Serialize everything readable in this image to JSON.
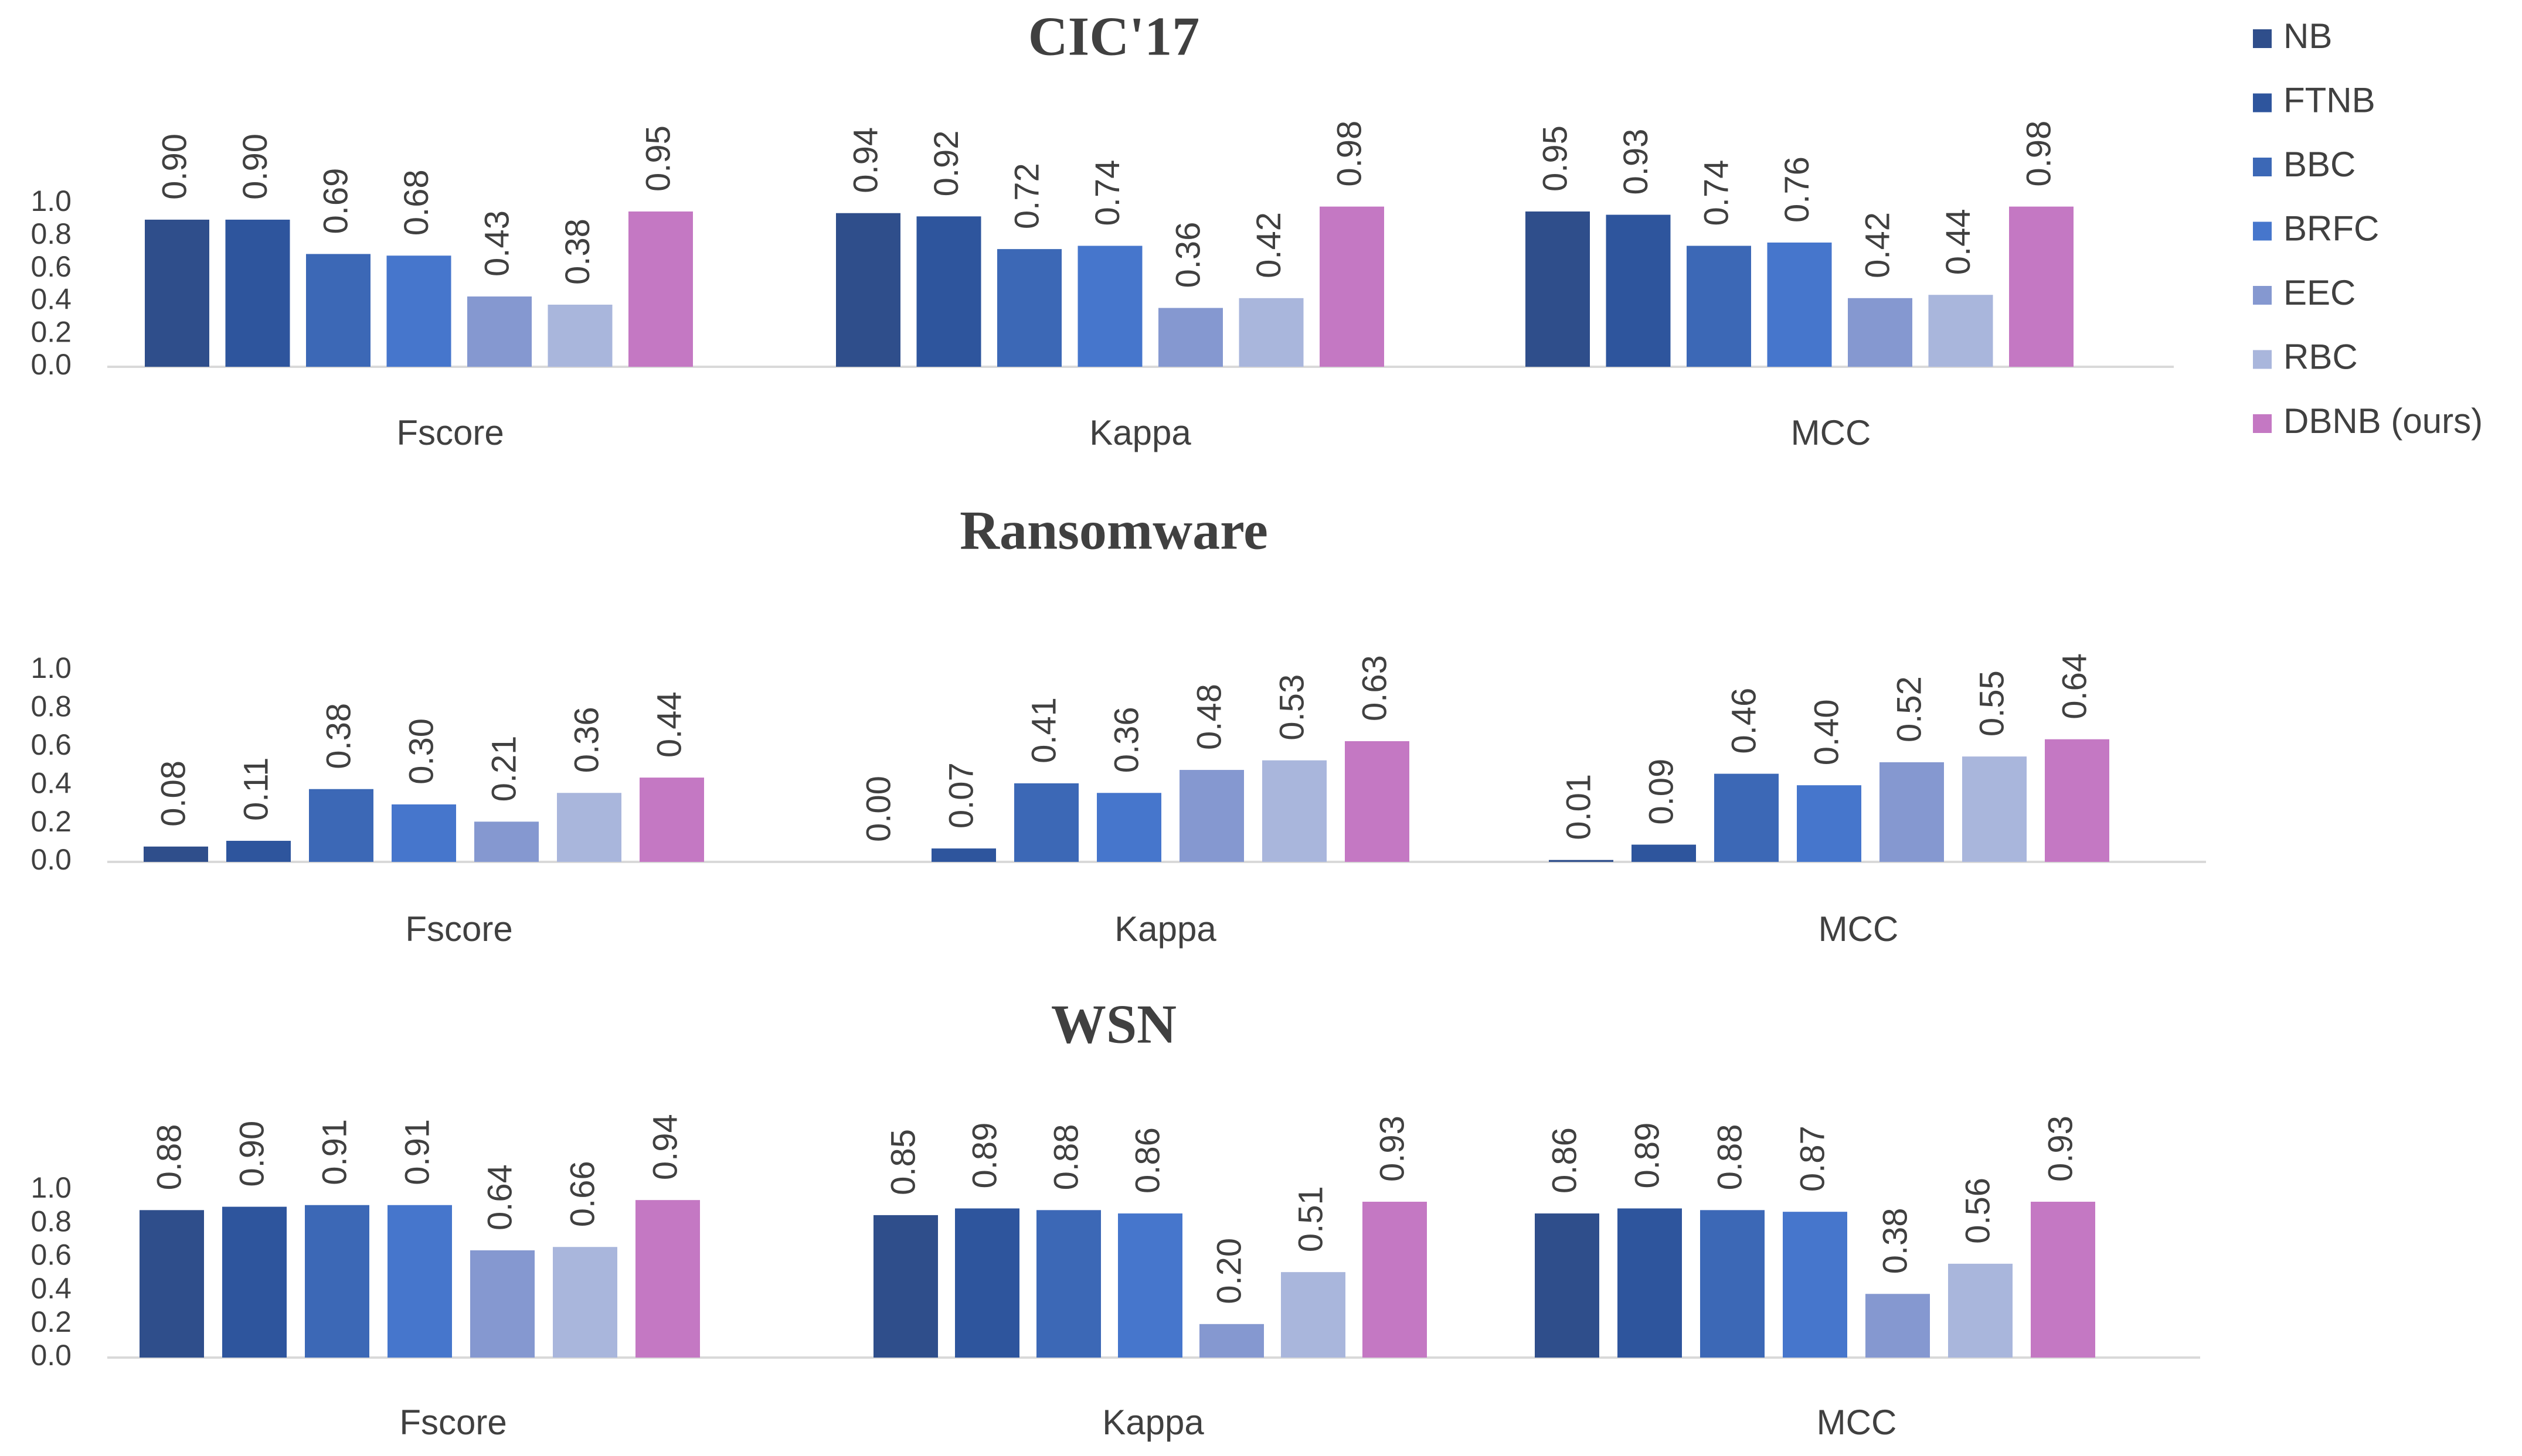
{
  "chart_data": [
    {
      "type": "bar",
      "title": "CIC'17",
      "categories": [
        "Fscore",
        "Kappa",
        "MCC"
      ],
      "ylim": [
        0,
        1.0
      ],
      "yticks": [
        "0.0",
        "0.2",
        "0.4",
        "0.6",
        "0.8",
        "1.0"
      ],
      "series": [
        {
          "name": "NB",
          "values": [
            0.9,
            0.94,
            0.95
          ],
          "labels": [
            "0.90",
            "0.94",
            "0.95"
          ]
        },
        {
          "name": "FTNB",
          "values": [
            0.9,
            0.92,
            0.93
          ],
          "labels": [
            "0.90",
            "0.92",
            "0.93"
          ]
        },
        {
          "name": "BBC",
          "values": [
            0.69,
            0.72,
            0.74
          ],
          "labels": [
            "0.69",
            "0.72",
            "0.74"
          ]
        },
        {
          "name": "BRFC",
          "values": [
            0.68,
            0.74,
            0.76
          ],
          "labels": [
            "0.68",
            "0.74",
            "0.76"
          ]
        },
        {
          "name": "EEC",
          "values": [
            0.43,
            0.36,
            0.42
          ],
          "labels": [
            "0.43",
            "0.36",
            "0.42"
          ]
        },
        {
          "name": "RBC",
          "values": [
            0.38,
            0.42,
            0.44
          ],
          "labels": [
            "0.38",
            "0.42",
            "0.44"
          ]
        },
        {
          "name": "DBNB (ours)",
          "values": [
            0.95,
            0.98,
            0.98
          ],
          "labels": [
            "0.95",
            "0.98",
            "0.98"
          ]
        }
      ]
    },
    {
      "type": "bar",
      "title": "Ransomware",
      "categories": [
        "Fscore",
        "Kappa",
        "MCC"
      ],
      "ylim": [
        0,
        1.0
      ],
      "yticks": [
        "0.0",
        "0.2",
        "0.4",
        "0.6",
        "0.8",
        "1.0"
      ],
      "series": [
        {
          "name": "NB",
          "values": [
            0.08,
            0.0,
            0.01
          ],
          "labels": [
            "0.08",
            "0.00",
            "0.01"
          ]
        },
        {
          "name": "FTNB",
          "values": [
            0.11,
            0.07,
            0.09
          ],
          "labels": [
            "0.11",
            "0.07",
            "0.09"
          ]
        },
        {
          "name": "BBC",
          "values": [
            0.38,
            0.41,
            0.46
          ],
          "labels": [
            "0.38",
            "0.41",
            "0.46"
          ]
        },
        {
          "name": "BRFC",
          "values": [
            0.3,
            0.36,
            0.4
          ],
          "labels": [
            "0.30",
            "0.36",
            "0.40"
          ]
        },
        {
          "name": "EEC",
          "values": [
            0.21,
            0.48,
            0.52
          ],
          "labels": [
            "0.21",
            "0.48",
            "0.52"
          ]
        },
        {
          "name": "RBC",
          "values": [
            0.36,
            0.53,
            0.55
          ],
          "labels": [
            "0.36",
            "0.53",
            "0.55"
          ]
        },
        {
          "name": "DBNB (ours)",
          "values": [
            0.44,
            0.63,
            0.64
          ],
          "labels": [
            "0.44",
            "0.63",
            "0.64"
          ]
        }
      ]
    },
    {
      "type": "bar",
      "title": "WSN",
      "categories": [
        "Fscore",
        "Kappa",
        "MCC"
      ],
      "ylim": [
        0,
        1.0
      ],
      "yticks": [
        "0.0",
        "0.2",
        "0.4",
        "0.6",
        "0.8",
        "1.0"
      ],
      "series": [
        {
          "name": "NB",
          "values": [
            0.88,
            0.85,
            0.86
          ],
          "labels": [
            "0.88",
            "0.85",
            "0.86"
          ]
        },
        {
          "name": "FTNB",
          "values": [
            0.9,
            0.89,
            0.89
          ],
          "labels": [
            "0.90",
            "0.89",
            "0.89"
          ]
        },
        {
          "name": "BBC",
          "values": [
            0.91,
            0.88,
            0.88
          ],
          "labels": [
            "0.91",
            "0.88",
            "0.88"
          ]
        },
        {
          "name": "BRFC",
          "values": [
            0.91,
            0.86,
            0.87
          ],
          "labels": [
            "0.91",
            "0.86",
            "0.87"
          ]
        },
        {
          "name": "EEC",
          "values": [
            0.64,
            0.2,
            0.38
          ],
          "labels": [
            "0.64",
            "0.20",
            "0.38"
          ]
        },
        {
          "name": "RBC",
          "values": [
            0.66,
            0.51,
            0.56
          ],
          "labels": [
            "0.66",
            "0.51",
            "0.56"
          ]
        },
        {
          "name": "DBNB (ours)",
          "values": [
            0.94,
            0.93,
            0.93
          ],
          "labels": [
            "0.94",
            "0.93",
            "0.93"
          ]
        }
      ]
    }
  ],
  "legend": [
    {
      "name": "NB",
      "color": "#2f4e8b"
    },
    {
      "name": "FTNB",
      "color": "#2e559d"
    },
    {
      "name": "BBC",
      "color": "#3c68b6"
    },
    {
      "name": "BRFC",
      "color": "#4676cc"
    },
    {
      "name": "EEC",
      "color": "#8598d0"
    },
    {
      "name": "RBC",
      "color": "#a9b6dc"
    },
    {
      "name": "DBNB (ours)",
      "color": "#c478c3"
    }
  ]
}
